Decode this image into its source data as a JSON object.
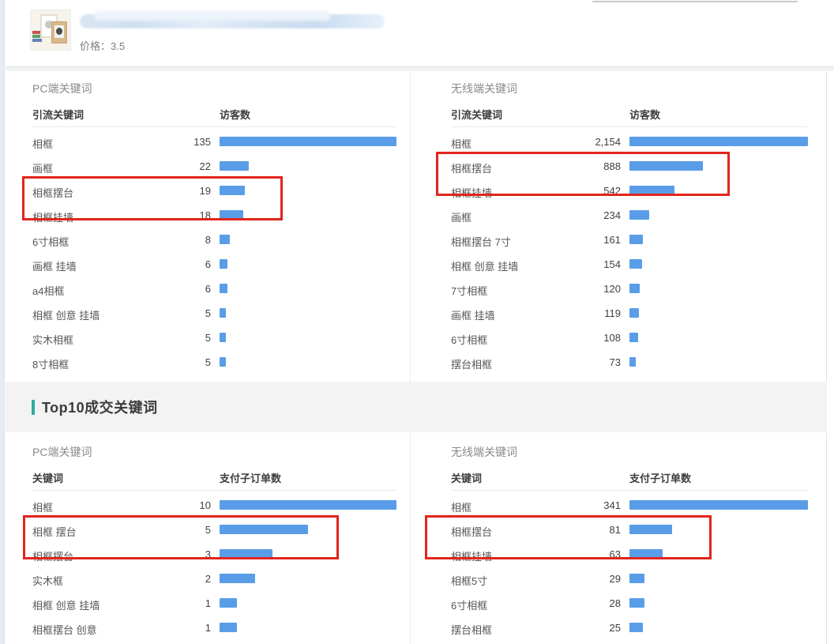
{
  "product_card": {
    "price": "价格：3.5",
    "thumbnail": "photo-frames-product-image",
    "title_state": "redacted-blur"
  },
  "colors": {
    "bar_blue": "#599de8",
    "highlight_red": "#e1251b",
    "accent_teal": "#2eaaa4",
    "band_gray": "#f3f3f4"
  },
  "top10_header": {
    "title": "Top10成交关键词"
  },
  "tables": [
    {
      "section_title": "PC端关键词",
      "keyword_header": "引流关键词",
      "value_header": "访客数",
      "max_value": 135,
      "highlight": {
        "start": 2,
        "end": 3
      },
      "rows": [
        {
          "keyword": "相框",
          "value": "135",
          "n": 135
        },
        {
          "keyword": "画框",
          "value": "22",
          "n": 22
        },
        {
          "keyword": "相框摆台",
          "value": "19",
          "n": 19
        },
        {
          "keyword": "相框挂墙",
          "value": "18",
          "n": 18
        },
        {
          "keyword": "6寸相框",
          "value": "8",
          "n": 8
        },
        {
          "keyword": "画框 挂墙",
          "value": "6",
          "n": 6
        },
        {
          "keyword": "a4相框",
          "value": "6",
          "n": 6
        },
        {
          "keyword": "相框 创意 挂墙",
          "value": "5",
          "n": 5
        },
        {
          "keyword": "实木相框",
          "value": "5",
          "n": 5
        },
        {
          "keyword": "8寸相框",
          "value": "5",
          "n": 5
        }
      ]
    },
    {
      "section_title": "无线端关键词",
      "keyword_header": "引流关键词",
      "value_header": "访客数",
      "max_value": 2154,
      "highlight": {
        "start": 1,
        "end": 2
      },
      "rows": [
        {
          "keyword": "相框",
          "value": "2,154",
          "n": 2154
        },
        {
          "keyword": "相框摆台",
          "value": "888",
          "n": 888
        },
        {
          "keyword": "相框挂墙",
          "value": "542",
          "n": 542
        },
        {
          "keyword": "画框",
          "value": "234",
          "n": 234
        },
        {
          "keyword": "相框摆台 7寸",
          "value": "161",
          "n": 161
        },
        {
          "keyword": "相框 创意 挂墙",
          "value": "154",
          "n": 154
        },
        {
          "keyword": "7寸相框",
          "value": "120",
          "n": 120
        },
        {
          "keyword": "画框 挂墙",
          "value": "119",
          "n": 119
        },
        {
          "keyword": "6寸相框",
          "value": "108",
          "n": 108
        },
        {
          "keyword": "摆台相框",
          "value": "73",
          "n": 73
        }
      ]
    },
    {
      "section_title": "PC端关键词",
      "keyword_header": "关键词",
      "value_header": "支付子订单数",
      "max_value": 10,
      "highlight": {
        "start": 1,
        "end": 2
      },
      "rows": [
        {
          "keyword": "相框",
          "value": "10",
          "n": 10
        },
        {
          "keyword": "相框 摆台",
          "value": "5",
          "n": 5
        },
        {
          "keyword": "相框摆台",
          "value": "3",
          "n": 3
        },
        {
          "keyword": "实木框",
          "value": "2",
          "n": 2
        },
        {
          "keyword": "相框 创意 挂墙",
          "value": "1",
          "n": 1
        },
        {
          "keyword": "相框摆台 创意",
          "value": "1",
          "n": 1
        }
      ]
    },
    {
      "section_title": "无线端关键词",
      "keyword_header": "关键词",
      "value_header": "支付子订单数",
      "max_value": 341,
      "highlight": {
        "start": 1,
        "end": 2
      },
      "rows": [
        {
          "keyword": "相框",
          "value": "341",
          "n": 341
        },
        {
          "keyword": "相框摆台",
          "value": "81",
          "n": 81
        },
        {
          "keyword": "相框挂墙",
          "value": "63",
          "n": 63
        },
        {
          "keyword": "相框5寸",
          "value": "29",
          "n": 29
        },
        {
          "keyword": "6寸相框",
          "value": "28",
          "n": 28
        },
        {
          "keyword": "摆台相框",
          "value": "25",
          "n": 25
        }
      ]
    }
  ]
}
